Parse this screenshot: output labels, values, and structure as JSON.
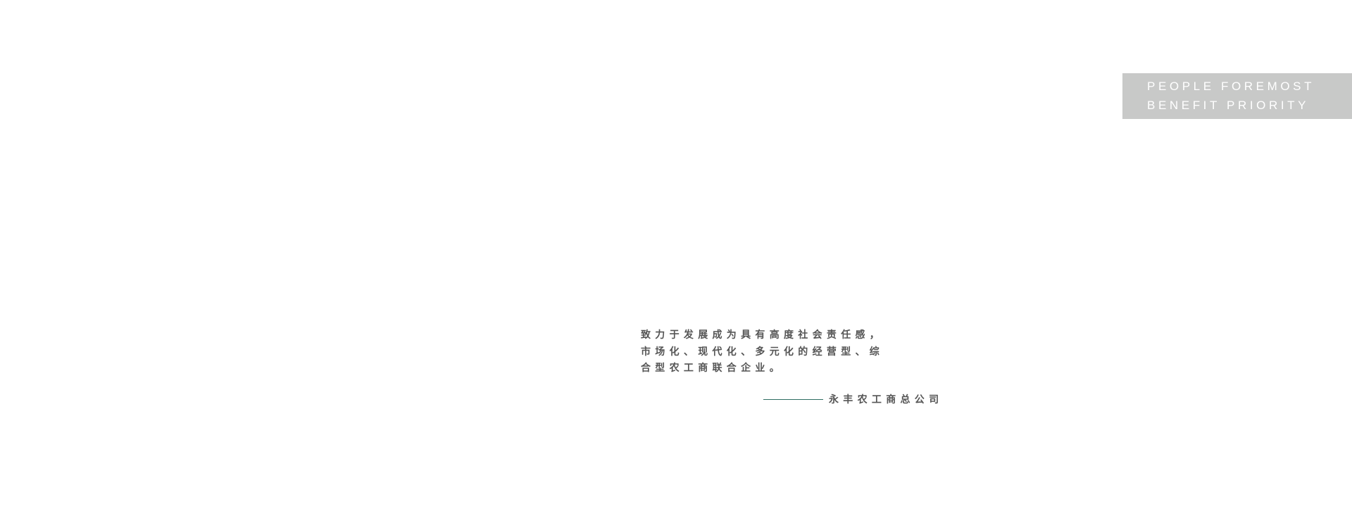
{
  "badge": {
    "line1": "PEOPLE FOREMOST",
    "line2": "BENEFIT PRIORITY",
    "background": "#c8c9c8"
  },
  "mission": {
    "lines": [
      "致力于发展成为具有高度社会责任感，",
      "市场化、现代化、多元化的经营型、综",
      "合型农工商联合企业。"
    ]
  },
  "signature": {
    "text": "永丰农工商总公司",
    "line_color": "#2e6e62"
  }
}
